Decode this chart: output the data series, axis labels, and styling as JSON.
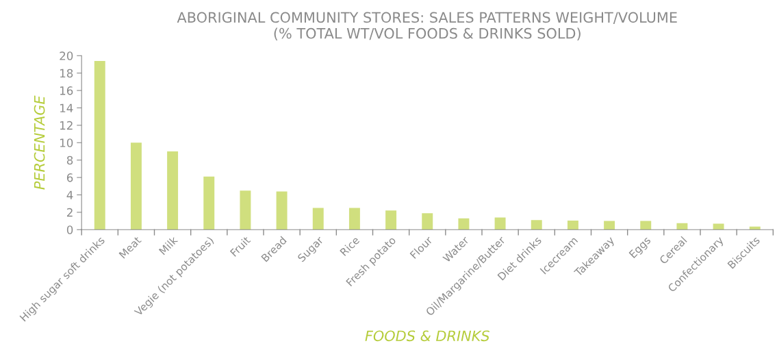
{
  "chart_data": {
    "type": "bar",
    "title": "ABORIGINAL COMMUNITY STORES: SALES PATTERNS WEIGHT/VOLUME\n(% TOTAL WT/VOL FOODS & DRINKS SOLD)",
    "xlabel": "FOODS & DRINKS",
    "ylabel": "PERCENTAGE",
    "categories": [
      "High sugar soft drinks",
      "Meat",
      "Milk",
      "Vegie (not potatoes)",
      "Fruit",
      "Bread",
      "Sugar",
      "Rice",
      "Fresh potato",
      "Flour",
      "Water",
      "Oil/Margarine/Butter",
      "Diet drinks",
      "Icecream",
      "Takeaway",
      "Eggs",
      "Cereal",
      "Confectionary",
      "Biscuits"
    ],
    "values": [
      19.4,
      10,
      9,
      6.1,
      4.5,
      4.4,
      2.5,
      2.5,
      2.2,
      1.9,
      1.3,
      1.4,
      1.1,
      1.05,
      1.0,
      1.0,
      0.75,
      0.7,
      0.35
    ],
    "color": "#d0df7e",
    "ylim": [
      0,
      20
    ],
    "yticks": [
      0,
      2,
      4,
      6,
      8,
      10,
      12,
      14,
      16,
      18,
      20
    ],
    "grid": false,
    "legend": false
  }
}
